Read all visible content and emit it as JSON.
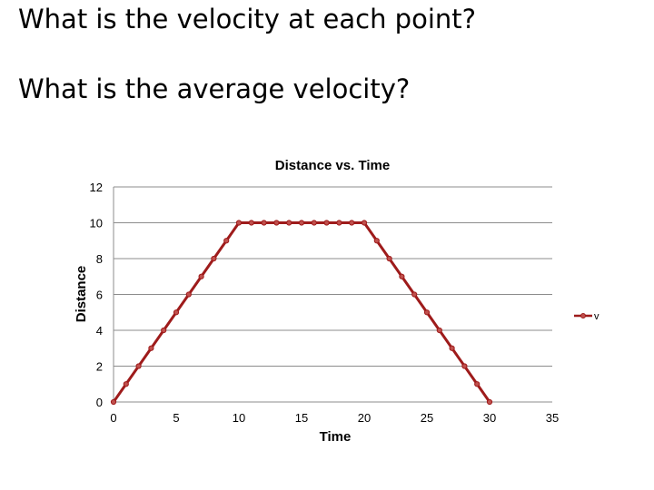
{
  "slide": {
    "question_1": "What is the velocity at each point?",
    "question_2": "What is the average velocity?"
  },
  "colors": {
    "series": "#9e1b1b",
    "marker_fill": "#c0504d",
    "grid": "#8c8c8c"
  },
  "chart_data": {
    "type": "line",
    "title": "Distance vs. Time",
    "xlabel": "Time",
    "ylabel": "Distance",
    "xlim": [
      0,
      35
    ],
    "ylim": [
      0,
      12
    ],
    "xticks": [
      0,
      5,
      10,
      15,
      20,
      25,
      30,
      35
    ],
    "yticks": [
      0,
      2,
      4,
      6,
      8,
      10,
      12
    ],
    "grid": "horizontal",
    "legend_position": "right",
    "series": [
      {
        "name": "v",
        "x": [
          0,
          1,
          2,
          3,
          4,
          5,
          6,
          7,
          8,
          9,
          10,
          11,
          12,
          13,
          14,
          15,
          16,
          17,
          18,
          19,
          20,
          21,
          22,
          23,
          24,
          25,
          26,
          27,
          28,
          29,
          30
        ],
        "y": [
          0,
          1,
          2,
          3,
          4,
          5,
          6,
          7,
          8,
          9,
          10,
          10,
          10,
          10,
          10,
          10,
          10,
          10,
          10,
          10,
          10,
          9,
          8,
          7,
          6,
          5,
          4,
          3,
          2,
          1,
          0
        ]
      }
    ]
  }
}
